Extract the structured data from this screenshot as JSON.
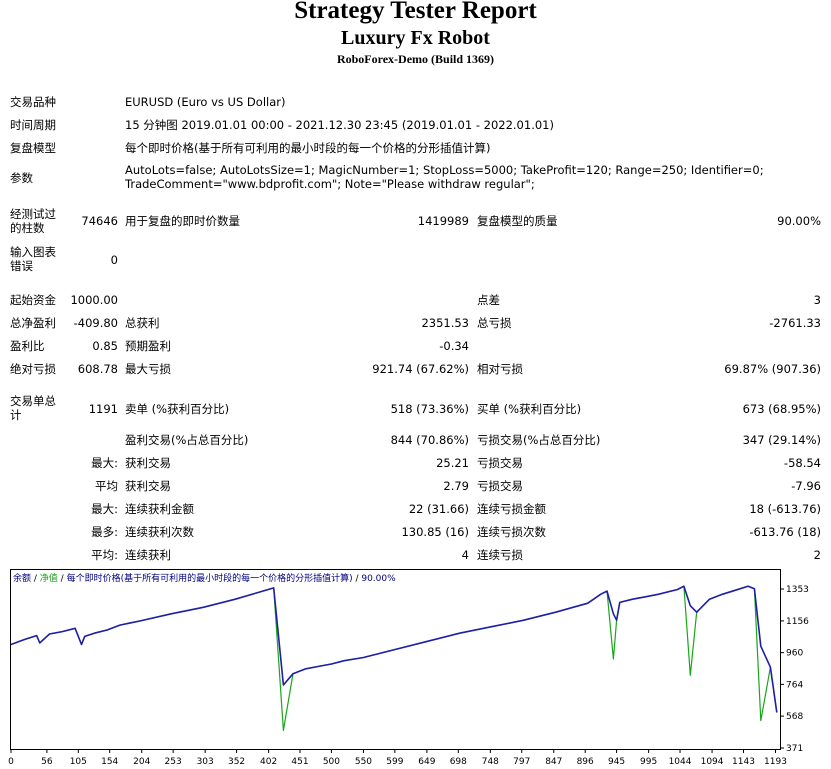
{
  "header": {
    "title": "Strategy Tester Report",
    "expert": "Luxury Fx Robot",
    "server": "RoboForex-Demo (Build 1369)"
  },
  "info": {
    "symbol_label": "交易品种",
    "symbol_value": "EURUSD (Euro vs US Dollar)",
    "period_label": "时间周期",
    "period_value": "15 分钟图 2019.01.01 00:00 - 2021.12.30 23:45 (2019.01.01 - 2022.01.01)",
    "model_label": "复盘模型",
    "model_value": "每个即时价格(基于所有可利用的最小时段的每一个价格的分形插值计算)",
    "params_label": "参数",
    "params_line1": "AutoLots=false; AutoLotsSize=1; MagicNumber=1; StopLoss=5000; TakeProfit=120; Range=250; Identifier=0;",
    "params_line2": "TradeComment=\"www.bdprofit.com\"; Note=\"Please withdraw regular\";"
  },
  "stats": {
    "bars_label": "经测试过的柱数",
    "bars_value": "74646",
    "ticks_label": "用于复盘的即时价数量",
    "ticks_value": "1419989",
    "quality_label": "复盘模型的质量",
    "quality_value": "90.00%",
    "errors_label": "输入图表错误",
    "errors_value": "0",
    "deposit_label": "起始资金",
    "deposit_value": "1000.00",
    "spread_label": "点差",
    "spread_value": "3",
    "net_label": "总净盈利",
    "net_value": "-409.80",
    "gross_profit_label": "总获利",
    "gross_profit_value": "2351.53",
    "gross_loss_label": "总亏损",
    "gross_loss_value": "-2761.33",
    "pf_label": "盈利比",
    "pf_value": "0.85",
    "payoff_label": "预期盈利",
    "payoff_value": "-0.34",
    "abs_dd_label": "绝对亏损",
    "abs_dd_value": "608.78",
    "max_dd_label": "最大亏损",
    "max_dd_value": "921.74 (67.62%)",
    "rel_dd_label": "相对亏损",
    "rel_dd_value": "69.87% (907.36)",
    "trades_label": "交易单总计",
    "trades_value": "1191",
    "short_label": "卖单 (%获利百分比)",
    "short_value": "518 (73.36%)",
    "long_label": "买单 (%获利百分比)",
    "long_value": "673 (68.95%)",
    "profit_trades_label": "盈利交易(%占总百分比)",
    "profit_trades_value": "844 (70.86%)",
    "loss_trades_label": "亏损交易(%占总百分比)",
    "loss_trades_value": "347 (29.14%)",
    "r1_prefix": "最大:",
    "r1_l_label": "获利交易",
    "r1_l_value": "25.21",
    "r1_r_label": "亏损交易",
    "r1_r_value": "-58.54",
    "r2_prefix": "平均",
    "r2_l_label": "获利交易",
    "r2_l_value": "2.79",
    "r2_r_label": "亏损交易",
    "r2_r_value": "-7.96",
    "r3_prefix": "最大:",
    "r3_l_label": "连续获利金额",
    "r3_l_value": "22 (31.66)",
    "r3_r_label": "连续亏损金额",
    "r3_r_value": "18 (-613.76)",
    "r4_prefix": "最多:",
    "r4_l_label": "连续获利次数",
    "r4_l_value": "130.85 (16)",
    "r4_r_label": "连续亏损次数",
    "r4_r_value": "-613.76 (18)",
    "r5_prefix": "平均:",
    "r5_l_label": "连续获利",
    "r5_l_value": "4",
    "r5_r_label": "连续亏损",
    "r5_r_value": "2"
  },
  "colors": {
    "balance": "#1f1fa6",
    "equity": "#19a619",
    "legend_text": "#000080"
  },
  "chart_data": {
    "type": "line",
    "legend": {
      "balance": "余额",
      "separator1": " / ",
      "equity": "净值",
      "separator2": " / ",
      "model": "每个即时价格(基于所有可利用的最小时段的每一个价格的分形插值计算)",
      "separator3": " / ",
      "quality": "90.00%"
    },
    "x_ticks": [
      0,
      56,
      105,
      154,
      204,
      253,
      303,
      352,
      402,
      451,
      500,
      550,
      599,
      649,
      698,
      748,
      797,
      847,
      896,
      945,
      995,
      1044,
      1094,
      1143,
      1193
    ],
    "y_ticks": [
      1353,
      1156,
      960,
      764,
      568,
      371
    ],
    "ylim": [
      371,
      1353
    ],
    "xlim": [
      0,
      1200
    ],
    "balance": {
      "x": [
        0,
        20,
        40,
        45,
        60,
        80,
        100,
        110,
        115,
        130,
        150,
        170,
        200,
        250,
        300,
        350,
        410,
        425,
        440,
        460,
        480,
        500,
        520,
        550,
        600,
        650,
        700,
        750,
        800,
        850,
        900,
        920,
        930,
        940,
        945,
        950,
        970,
        990,
        1010,
        1040,
        1050,
        1060,
        1070,
        1090,
        1110,
        1130,
        1150,
        1160,
        1170,
        1185,
        1195
      ],
      "y": [
        1010,
        1040,
        1065,
        1020,
        1075,
        1090,
        1110,
        1010,
        1060,
        1080,
        1100,
        1130,
        1155,
        1200,
        1240,
        1290,
        1360,
        760,
        830,
        860,
        875,
        890,
        910,
        930,
        980,
        1030,
        1080,
        1120,
        1160,
        1210,
        1265,
        1320,
        1340,
        1200,
        1160,
        1270,
        1290,
        1305,
        1320,
        1350,
        1370,
        1250,
        1210,
        1290,
        1320,
        1345,
        1370,
        1355,
        1000,
        870,
        590
      ]
    },
    "equity": {
      "x": [
        0,
        20,
        40,
        45,
        60,
        80,
        100,
        110,
        115,
        130,
        150,
        170,
        200,
        250,
        300,
        350,
        410,
        425,
        440,
        460,
        480,
        500,
        520,
        550,
        600,
        650,
        700,
        750,
        800,
        850,
        900,
        920,
        930,
        940,
        945,
        950,
        970,
        990,
        1010,
        1040,
        1050,
        1060,
        1070,
        1090,
        1110,
        1130,
        1150,
        1160,
        1170,
        1185,
        1195
      ],
      "y": [
        1010,
        1040,
        1065,
        1020,
        1075,
        1090,
        1110,
        1010,
        1060,
        1080,
        1100,
        1130,
        1155,
        1200,
        1240,
        1290,
        1360,
        480,
        830,
        860,
        875,
        890,
        910,
        930,
        980,
        1030,
        1080,
        1120,
        1160,
        1210,
        1265,
        1320,
        1340,
        920,
        1160,
        1270,
        1290,
        1305,
        1320,
        1350,
        1370,
        820,
        1210,
        1290,
        1320,
        1345,
        1370,
        1355,
        540,
        870,
        590
      ]
    }
  }
}
